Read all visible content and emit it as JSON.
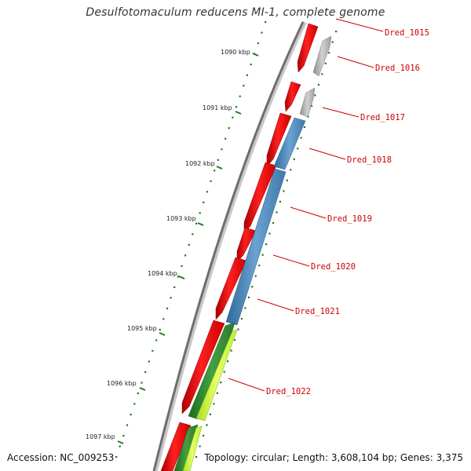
{
  "header": {
    "title": "Desulfotomaculum reducens MI-1, complete genome"
  },
  "footer": {
    "accession": "Accession: NC_009253",
    "summary": "Topology: circular; Length: 3,608,104 bp; Genes: 3,375"
  },
  "ruler": {
    "ticks": [
      {
        "label": "1090 kbp"
      },
      {
        "label": "1091 kbp"
      },
      {
        "label": "1092 kbp"
      },
      {
        "label": "1093 kbp"
      },
      {
        "label": "1094 kbp"
      },
      {
        "label": "1095 kbp"
      },
      {
        "label": "1096 kbp"
      },
      {
        "label": "1097 kbp"
      }
    ]
  },
  "genes": [
    {
      "label": "Dred_1015"
    },
    {
      "label": "Dred_1016"
    },
    {
      "label": "Dred_1017"
    },
    {
      "label": "Dred_1018"
    },
    {
      "label": "Dred_1019"
    },
    {
      "label": "Dred_1020"
    },
    {
      "label": "Dred_1021"
    },
    {
      "label": "Dred_1022"
    }
  ],
  "colors": {
    "cds": "#ff0000",
    "gray_feature": "#b8b8b8",
    "blue_feature": "#4a84b8",
    "green_feature": "#2f8a2f",
    "lime_feature": "#ccff33",
    "backbone": "#7a7a7a",
    "tick": "#1f7a1f",
    "label": "#cc0000"
  }
}
